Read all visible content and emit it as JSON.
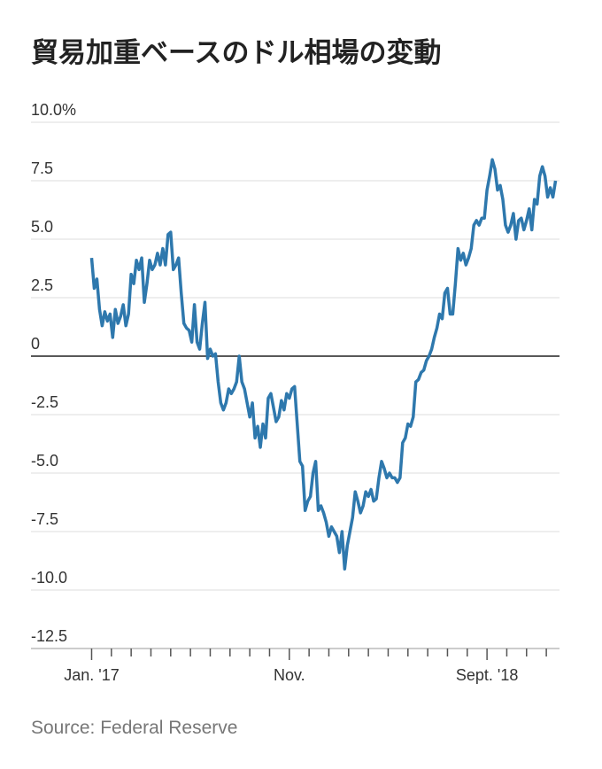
{
  "chart_data": {
    "type": "line",
    "title": "貿易加重ベースのドル相場の変動",
    "source": "Source: Federal Reserve",
    "color": "#2e78ad",
    "x": [
      0,
      1,
      2,
      3,
      4,
      5,
      6,
      7,
      8,
      9,
      10,
      11,
      12,
      13,
      14,
      15,
      16,
      17,
      18,
      19,
      20,
      21,
      22,
      23,
      24,
      25,
      26,
      27,
      28,
      29,
      30,
      31,
      32,
      33,
      34,
      35,
      36,
      37,
      38,
      39,
      40,
      41,
      42,
      43,
      44,
      45,
      46,
      47,
      48,
      49,
      50,
      51,
      52,
      53,
      54,
      55,
      56,
      57,
      58,
      59,
      60,
      61,
      62,
      63,
      64,
      65,
      66,
      67,
      68,
      69,
      70,
      71,
      72,
      73,
      74,
      75,
      76,
      77,
      78,
      79,
      80,
      81,
      82,
      83,
      84,
      85,
      86,
      87,
      88,
      89,
      90,
      91,
      92,
      93,
      94,
      95,
      96,
      97,
      98,
      99,
      100,
      101,
      102,
      103,
      104,
      105,
      106,
      107,
      108,
      109,
      110,
      111,
      112,
      113,
      114,
      115,
      116,
      117,
      118,
      119,
      120,
      121,
      122,
      123,
      124,
      125,
      126,
      127,
      128,
      129,
      130,
      131,
      132,
      133,
      134,
      135,
      136,
      137,
      138,
      139,
      140,
      141,
      142,
      143,
      144,
      145,
      146,
      147,
      148,
      149,
      150,
      151,
      152,
      153,
      154,
      155,
      156,
      157,
      158,
      159,
      160,
      161,
      162,
      163,
      164,
      165,
      166,
      167,
      168,
      169,
      170,
      171,
      172,
      173,
      174,
      175,
      176
    ],
    "values": [
      4.2,
      2.9,
      3.3,
      2.0,
      1.3,
      1.9,
      1.5,
      1.8,
      0.8,
      2.0,
      1.4,
      1.7,
      2.2,
      1.3,
      1.8,
      3.5,
      3.1,
      4.1,
      3.7,
      4.2,
      2.3,
      3.1,
      4.1,
      3.7,
      3.9,
      4.4,
      3.9,
      4.6,
      3.9,
      5.2,
      5.3,
      3.7,
      3.9,
      4.2,
      2.7,
      1.4,
      1.2,
      1.1,
      0.6,
      2.2,
      0.6,
      0.3,
      1.4,
      2.3,
      -0.1,
      0.3,
      0,
      0.1,
      -1.1,
      -2.0,
      -2.3,
      -2.0,
      -1.4,
      -1.6,
      -1.4,
      -1.1,
      0,
      -1.1,
      -1.4,
      -2.0,
      -2.6,
      -2.0,
      -3.5,
      -3.0,
      -3.9,
      -2.9,
      -3.5,
      -1.8,
      -1.6,
      -2.2,
      -2.8,
      -2.6,
      -1.9,
      -2.3,
      -1.6,
      -1.8,
      -1.4,
      -1.3,
      -2.9,
      -4.5,
      -4.7,
      -6.6,
      -6.2,
      -6.0,
      -5.0,
      -4.5,
      -6.6,
      -6.4,
      -6.7,
      -7.1,
      -7.7,
      -7.3,
      -7.5,
      -7.7,
      -8.4,
      -7.5,
      -9.1,
      -8.1,
      -7.5,
      -6.9,
      -5.8,
      -6.2,
      -6.7,
      -6.4,
      -5.8,
      -6.0,
      -5.7,
      -6.2,
      -6.1,
      -5.2,
      -4.5,
      -4.8,
      -5.2,
      -5.0,
      -5.2,
      -5.2,
      -5.4,
      -5.2,
      -3.7,
      -3.5,
      -2.9,
      -3.0,
      -2.6,
      -1.1,
      -1.0,
      -0.7,
      -0.6,
      -0.2,
      0,
      0.3,
      0.8,
      1.2,
      1.8,
      1.6,
      2.7,
      2.9,
      1.8,
      1.8,
      3.1,
      4.6,
      4.1,
      4.4,
      3.9,
      4.2,
      4.6,
      5.6,
      5.8,
      5.6,
      5.9,
      5.9,
      7.1,
      7.7,
      8.4,
      8.0,
      7.1,
      7.3,
      6.7,
      5.6,
      5.3,
      5.6,
      6.1,
      5.0,
      5.8,
      5.9,
      5.4,
      5.8,
      6.3,
      5.4,
      6.7,
      6.5,
      7.7,
      8.1,
      7.7,
      6.8,
      7.2,
      6.8,
      7.5
    ],
    "xlim": [
      -23,
      177.5
    ],
    "xticks": [
      {
        "value": 0,
        "label": "Jan. '17"
      },
      {
        "value": 75,
        "label": "Nov."
      },
      {
        "value": 150,
        "label": "Sept. '18"
      }
    ],
    "xminorticks": [
      7.5,
      15,
      22.5,
      30,
      37.5,
      45,
      52.5,
      60,
      67.5,
      82.5,
      90,
      97.5,
      105,
      112.5,
      120,
      127.5,
      135,
      142.5,
      157.5,
      165,
      172.5
    ],
    "ylim": [
      -12.5,
      10
    ],
    "yticks": [
      {
        "value": 10,
        "label": "10.0%"
      },
      7.5,
      {
        "value": 5,
        "label": "5.0"
      },
      2.5,
      0,
      -2.5,
      {
        "value": -5,
        "label": "-5.0"
      },
      -7.5,
      {
        "value": -10,
        "label": "-10.0"
      },
      -12.5
    ],
    "grid": true
  }
}
